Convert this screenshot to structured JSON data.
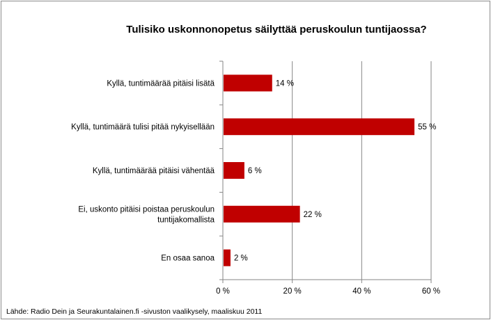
{
  "chart_data": {
    "type": "bar",
    "orientation": "horizontal",
    "title": "Tulisiko uskonnonopetus säilyttää peruskoulun tuntijaossa?",
    "source": "Lähde: Radio Dein ja  Seurakuntalainen.fi -sivuston vaalikysely, maaliskuu 2011",
    "categories": [
      [
        "Kyllä, tuntimäärää pitäisi lisätä"
      ],
      [
        "Kyllä, tuntimäärä tulisi pitää nykyisellään"
      ],
      [
        "Kyllä, tuntimäärää pitäisi vähentää"
      ],
      [
        "Ei, uskonto pitäisi poistaa peruskoulun",
        "tuntijakomallista"
      ],
      [
        "En osaa sanoa"
      ]
    ],
    "values": [
      14,
      55,
      6,
      22,
      2
    ],
    "data_labels": [
      "14 %",
      "55 %",
      "6 %",
      "22 %",
      "2 %"
    ],
    "xlim": [
      0,
      60
    ],
    "xticks": [
      0,
      20,
      40,
      60
    ],
    "xtick_labels": [
      "0 %",
      "20 %",
      "40 %",
      "60 %"
    ],
    "grid": true,
    "bar_color": "#c00000",
    "gridline_color": "#868686"
  }
}
